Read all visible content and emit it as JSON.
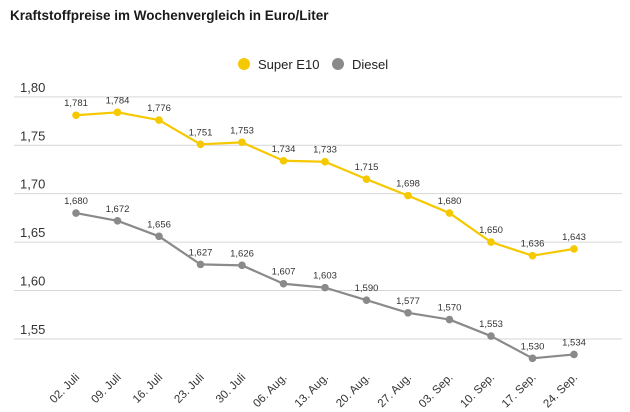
{
  "chart_data": {
    "type": "line",
    "title": "Kraftstoffpreise im Wochenvergleich in Euro/Liter",
    "xlabel": "",
    "ylabel": "",
    "ylim": [
      1.52,
      1.805
    ],
    "yticks": [
      {
        "value": 1.8,
        "label": "1,80"
      },
      {
        "value": 1.75,
        "label": "1,75"
      },
      {
        "value": 1.7,
        "label": "1,70"
      },
      {
        "value": 1.65,
        "label": "1,65"
      },
      {
        "value": 1.6,
        "label": "1,60"
      },
      {
        "value": 1.55,
        "label": "1,55"
      }
    ],
    "grid": true,
    "legend_position": "top-center",
    "categories": [
      "02. Juli",
      "09. Juli",
      "16. Juli",
      "23. Juli",
      "30. Juli",
      "06. Aug.",
      "13. Aug.",
      "20. Aug.",
      "27. Aug.",
      "03. Sep.",
      "10. Sep.",
      "17. Sep.",
      "24. Sep."
    ],
    "series": [
      {
        "name": "Super E10",
        "color": "#f5c800",
        "values": [
          1.781,
          1.784,
          1.776,
          1.751,
          1.753,
          1.734,
          1.733,
          1.715,
          1.698,
          1.68,
          1.65,
          1.636,
          1.643
        ],
        "labels": [
          "1,781",
          "1,784",
          "1,776",
          "1,751",
          "1,753",
          "1,734",
          "1,733",
          "1,715",
          "1,698",
          "1,680",
          "1,650",
          "1,636",
          "1,643"
        ]
      },
      {
        "name": "Diesel",
        "color": "#8a8a8a",
        "values": [
          1.68,
          1.672,
          1.656,
          1.627,
          1.626,
          1.607,
          1.603,
          1.59,
          1.577,
          1.57,
          1.553,
          1.53,
          1.534
        ],
        "labels": [
          "1,680",
          "1,672",
          "1,656",
          "1,627",
          "1,626",
          "1,607",
          "1,603",
          "1,590",
          "1,577",
          "1,570",
          "1,553",
          "1,530",
          "1,534"
        ]
      }
    ]
  }
}
